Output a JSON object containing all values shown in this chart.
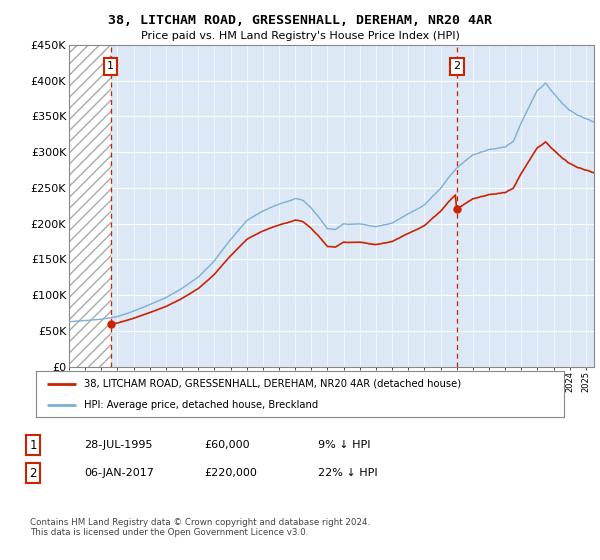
{
  "title": "38, LITCHAM ROAD, GRESSENHALL, DEREHAM, NR20 4AR",
  "subtitle": "Price paid vs. HM Land Registry's House Price Index (HPI)",
  "legend_line1": "38, LITCHAM ROAD, GRESSENHALL, DEREHAM, NR20 4AR (detached house)",
  "legend_line2": "HPI: Average price, detached house, Breckland",
  "annotation1_date": "28-JUL-1995",
  "annotation1_price": "£60,000",
  "annotation1_hpi": "9% ↓ HPI",
  "annotation2_date": "06-JAN-2017",
  "annotation2_price": "£220,000",
  "annotation2_hpi": "22% ↓ HPI",
  "footer": "Contains HM Land Registry data © Crown copyright and database right 2024.\nThis data is licensed under the Open Government Licence v3.0.",
  "sale1_year": 1995.57,
  "sale1_value": 60000,
  "sale2_year": 2017.02,
  "sale2_value": 220000,
  "hpi_color": "#7bafd4",
  "price_color": "#cc2200",
  "vline_color": "#cc2200",
  "ylim_max": 450000,
  "ylim_min": 0,
  "xlim_min": 1993,
  "xlim_max": 2025.5
}
